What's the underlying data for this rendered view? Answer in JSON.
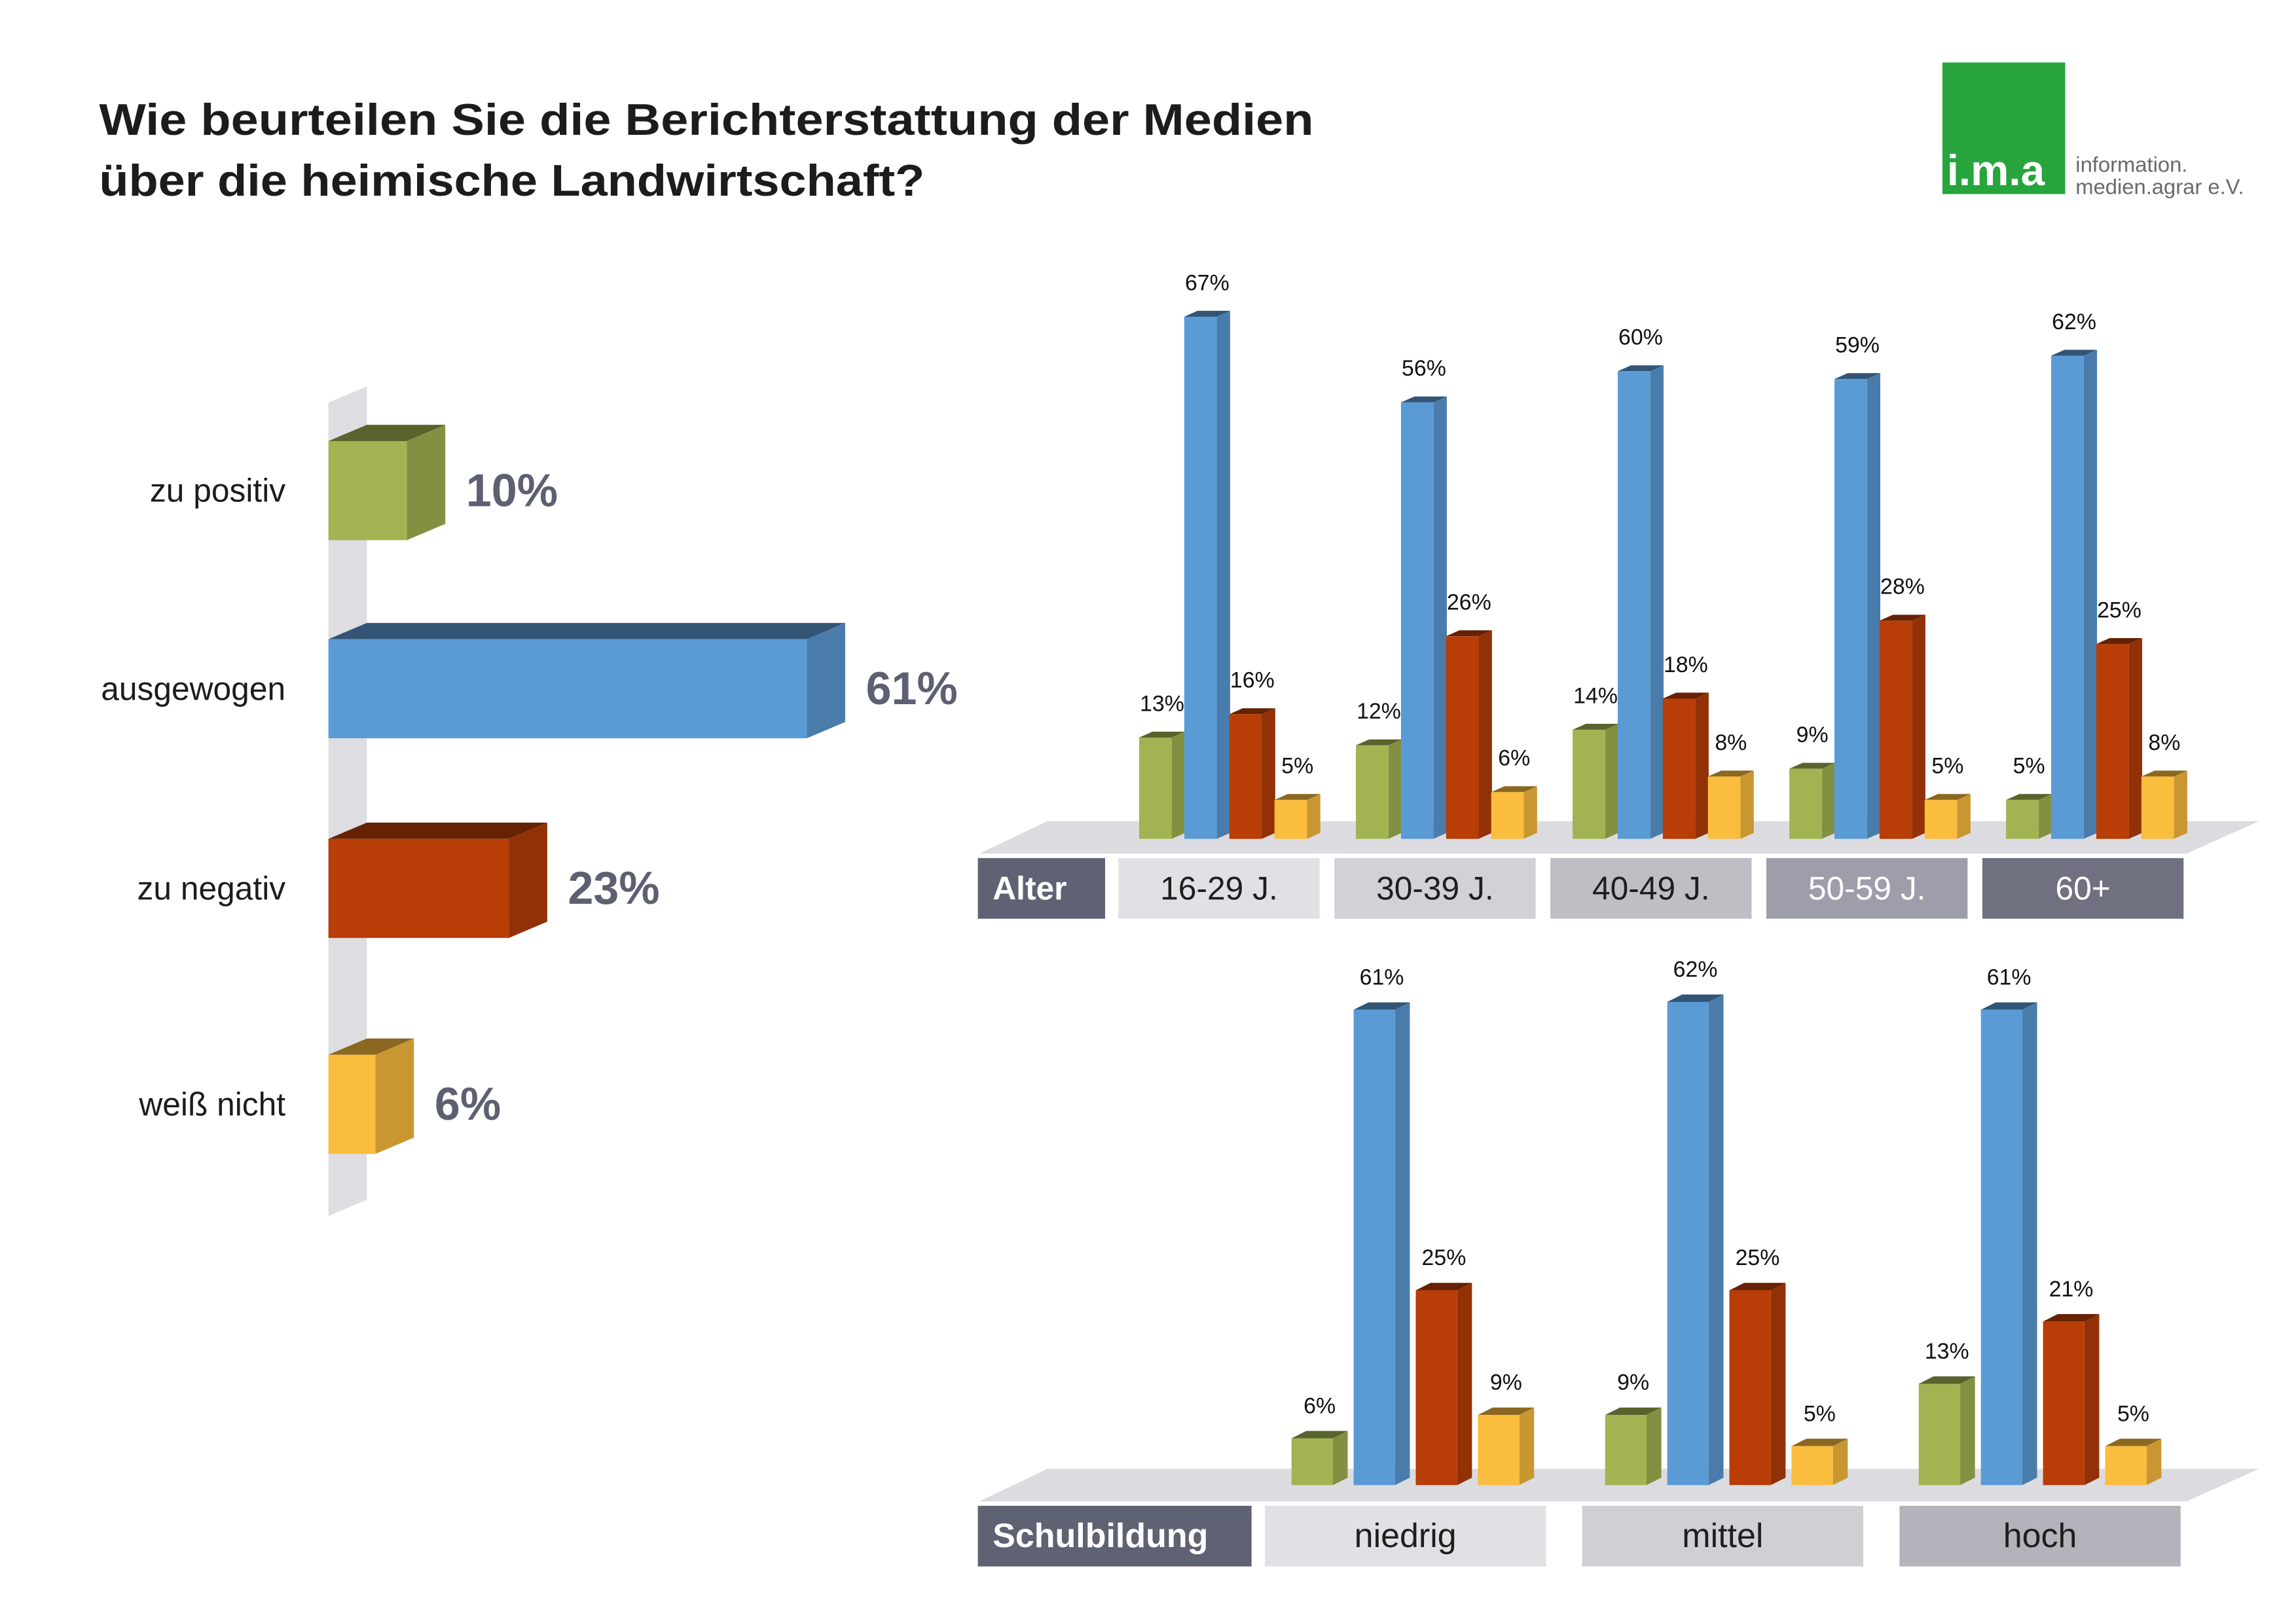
{
  "title": {
    "line1": "Wie beurteilen Sie die Berichterstattung der Medien",
    "line2": "über die heimische Landwirtschaft?"
  },
  "logo": {
    "mark": "i.m.a",
    "line1": "information.",
    "line2": "medien.agrar e.V.",
    "color": "#27a53c"
  },
  "chart_data": [
    {
      "type": "bar",
      "orientation": "horizontal",
      "categories": [
        "zu positiv",
        "ausgewogen",
        "zu negativ",
        "weiß nicht"
      ],
      "values": [
        10,
        61,
        23,
        6
      ],
      "unit": "%",
      "colors": [
        "#a2b451",
        "#5b9bd5",
        "#b83d07",
        "#fbbd3d"
      ]
    },
    {
      "type": "bar",
      "group_label": "Alter",
      "label_color": "#5f6273",
      "categories": [
        "16-29 J.",
        "30-39 J.",
        "40-49 J.",
        "50-59 J.",
        "60+"
      ],
      "category_colors": [
        "#e1e1e5",
        "#d1d1d6",
        "#bebec5",
        "#9d9ea9",
        "#6f7180"
      ],
      "category_text_colors": [
        "#1e1e1e",
        "#1e1e1e",
        "#1e1e1e",
        "#ffffff",
        "#ffffff"
      ],
      "unit": "%",
      "series": [
        {
          "color": "#a2b451",
          "values": [
            13,
            12,
            14,
            9,
            5
          ]
        },
        {
          "color": "#5b9bd5",
          "values": [
            67,
            56,
            60,
            59,
            62
          ]
        },
        {
          "color": "#b83d07",
          "values": [
            16,
            26,
            18,
            28,
            25
          ]
        },
        {
          "color": "#fbbd3d",
          "values": [
            5,
            6,
            8,
            5,
            8
          ]
        }
      ]
    },
    {
      "type": "bar",
      "group_label": "Schulbildung",
      "label_color": "#5f6273",
      "categories": [
        "niedrig",
        "mittel",
        "hoch"
      ],
      "category_colors": [
        "#e1e1e5",
        "#cfcfd4",
        "#b2b3bb"
      ],
      "category_text_colors": [
        "#1e1e1e",
        "#1e1e1e",
        "#1e1e1e"
      ],
      "unit": "%",
      "series": [
        {
          "color": "#a2b451",
          "values": [
            6,
            9,
            13
          ]
        },
        {
          "color": "#5b9bd5",
          "values": [
            61,
            62,
            61
          ]
        },
        {
          "color": "#b83d07",
          "values": [
            25,
            25,
            21
          ]
        },
        {
          "color": "#fbbd3d",
          "values": [
            9,
            5,
            5
          ]
        }
      ]
    }
  ]
}
